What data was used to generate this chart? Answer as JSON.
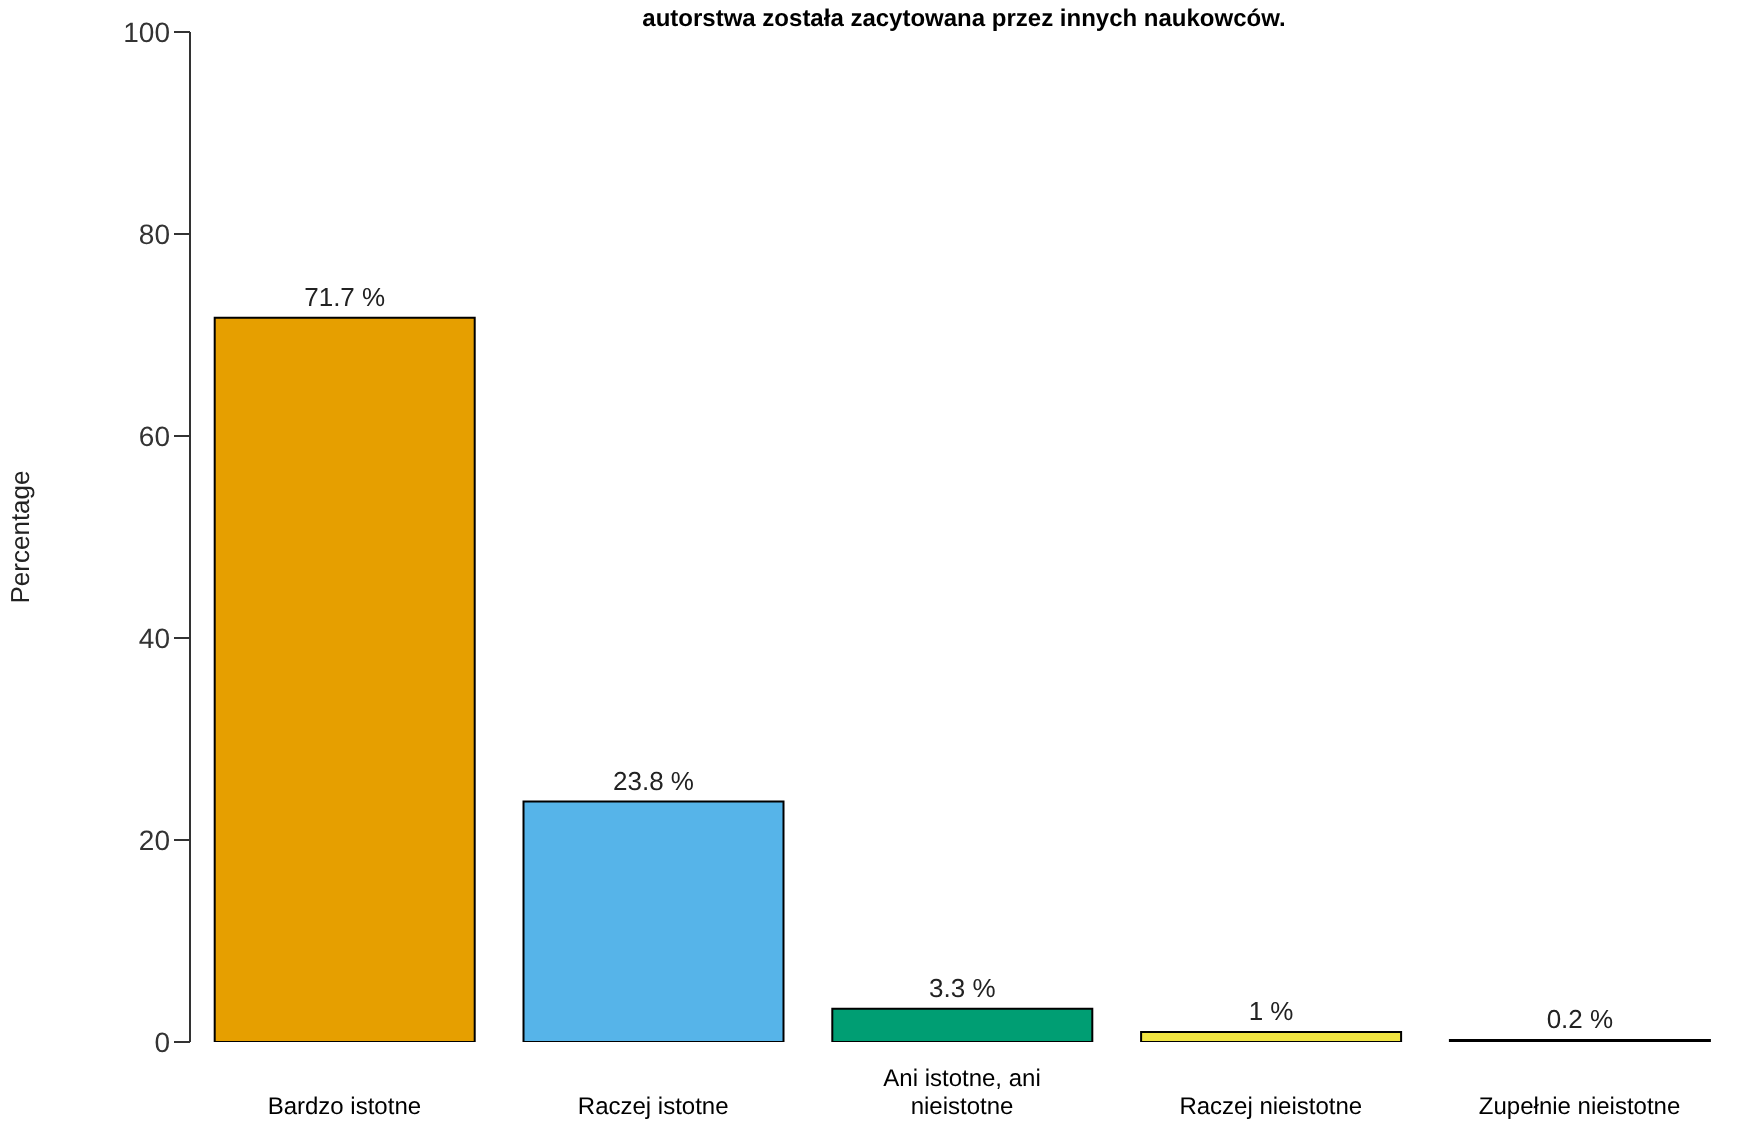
{
  "chart_data": {
    "type": "bar",
    "title": "autorstwa została zacytowana przez innych naukowców.",
    "ylabel": "Percentage",
    "categories": [
      "Bardzo istotne",
      "Raczej istotne",
      "Ani istotne, ani nieistotne",
      "Raczej nieistotne",
      "Zupełnie nieistotne"
    ],
    "values": [
      71.7,
      23.8,
      3.3,
      1,
      0.2
    ],
    "colors": [
      "#e69f00",
      "#56b4e9",
      "#009e73",
      "#f0e442",
      "#0072b2"
    ],
    "value_labels": [
      "71.7 %",
      "23.8 %",
      "3.3 %",
      "1 %",
      "0.2 %"
    ],
    "ylim": [
      0,
      100
    ],
    "yticks": [
      0,
      20,
      40,
      60,
      80,
      100
    ],
    "grid": false,
    "legend": false
  }
}
